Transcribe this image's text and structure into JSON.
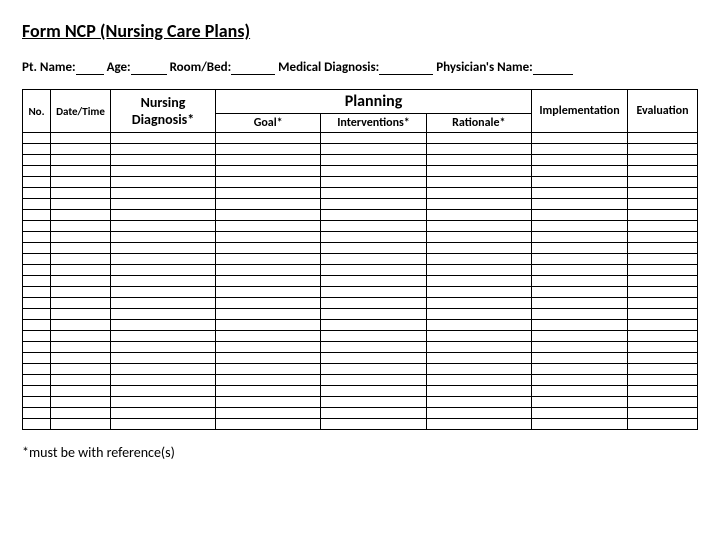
{
  "title": "Form NCP (Nursing Care Plans)",
  "patient": {
    "name_label": "Pt. Name:",
    "age_label": "Age:",
    "roombed_label": "Room/Bed:",
    "diagnosis_label": "Medical Diagnosis:",
    "physician_label": "Physician's Name:"
  },
  "table": {
    "headers": {
      "no": "No.",
      "datetime": "Date/Time",
      "nursing_diagnosis": "Nursing Diagnosis*",
      "planning": "Planning",
      "goal": "Goal*",
      "interventions": "Interventions*",
      "rationale": "Rationale*",
      "implementation": "Implementation",
      "evaluation": "Evaluation"
    },
    "row_count": 27,
    "columns": 8,
    "border_color": "#000000",
    "background": "#ffffff"
  },
  "footnote": "*must be with reference(s)",
  "style": {
    "title_fontsize": 18,
    "header_fontsize": 13,
    "body_font": "Calibri",
    "text_color": "#000000",
    "blank_widths": {
      "name": 28,
      "age": 36,
      "roombed": 44,
      "diagnosis": 54,
      "physician": 40
    }
  }
}
